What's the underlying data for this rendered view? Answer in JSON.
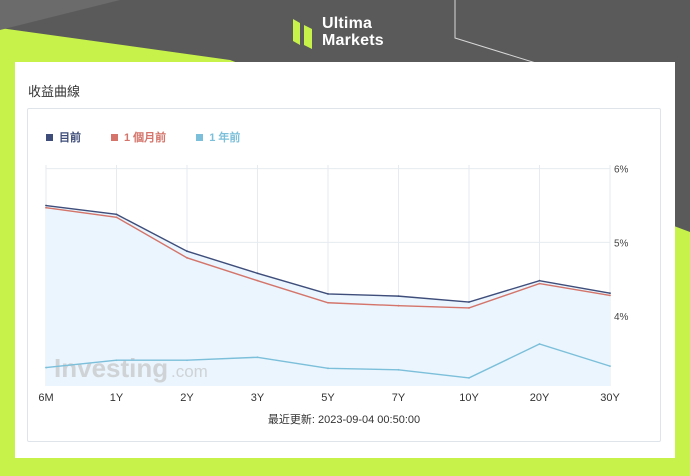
{
  "brand": {
    "name_line1": "Ultima",
    "name_line2": "Markets",
    "accent": "#c6f24a",
    "icon": "ultima-markets-logo-icon"
  },
  "card": {
    "title": "收益曲線"
  },
  "watermark": {
    "text": "Investing",
    "suffix": ".com"
  },
  "updated_label": "最近更新: 2023-09-04 00:50:00",
  "chart_data": {
    "type": "line",
    "title": "",
    "xlabel": "",
    "ylabel": "",
    "categories": [
      "6M",
      "1Y",
      "2Y",
      "3Y",
      "5Y",
      "7Y",
      "10Y",
      "20Y",
      "30Y"
    ],
    "y_ticks": [
      "6%",
      "5%",
      "4%"
    ],
    "y_tick_values": [
      6,
      5,
      4
    ],
    "ylim": [
      3.05,
      6.05
    ],
    "y_axis_side": "right",
    "grid": true,
    "legend_placement": "top-left",
    "series": [
      {
        "name": "目前",
        "color": "#3e4d7a",
        "values": [
          5.5,
          5.38,
          4.88,
          4.58,
          4.3,
          4.27,
          4.19,
          4.48,
          4.31
        ],
        "fill": "#eaf5fd"
      },
      {
        "name": "1 個月前",
        "color": "#d4746a",
        "values": [
          5.47,
          5.34,
          4.79,
          4.48,
          4.18,
          4.14,
          4.11,
          4.44,
          4.28
        ]
      },
      {
        "name": "1 年前",
        "color": "#7bbfda",
        "values": [
          3.3,
          3.4,
          3.4,
          3.44,
          3.29,
          3.27,
          3.16,
          3.62,
          3.32
        ]
      }
    ]
  }
}
